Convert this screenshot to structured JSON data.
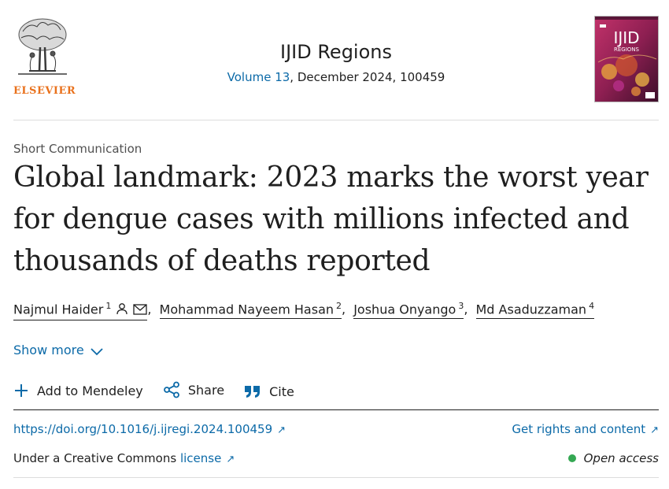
{
  "header": {
    "publisher_logo_text": "ELSEVIER",
    "journal_title": "IJID Regions",
    "volume_link": "Volume 13",
    "issue_rest": ", December 2024, 100459",
    "cover_title": "IJID",
    "cover_subtitle": "REGIONS"
  },
  "article": {
    "type": "Short Communication",
    "title": "Global landmark: 2023 marks the worst year for dengue cases with millions infected and thousands of deaths reported"
  },
  "authors": [
    {
      "name": "Najmul Haider",
      "sup": "1"
    },
    {
      "name": "Mohammad Nayeem Hasan",
      "sup": "2"
    },
    {
      "name": "Joshua Onyango",
      "sup": "3"
    },
    {
      "name": "Md Asaduzzaman",
      "sup": "4"
    }
  ],
  "show_more": "Show more",
  "actions": {
    "mendeley": "Add to Mendeley",
    "share": "Share",
    "cite": "Cite"
  },
  "links": {
    "doi": "https://doi.org/10.1016/j.ijregi.2024.100459",
    "rights": "Get rights and content",
    "license_prefix": "Under a Creative Commons ",
    "license_link": "license",
    "open_access": "Open access"
  },
  "icons": {
    "arrow": "↗",
    "person": "person-icon",
    "mail": "mail-icon",
    "plus": "plus-icon",
    "share": "share-icon",
    "cite": "quote-icon",
    "chevron": "chevron-down-icon"
  },
  "colors": {
    "link": "#0c6aa8",
    "elsevier_orange": "#e9711c",
    "open_access_dot": "#34a853"
  }
}
